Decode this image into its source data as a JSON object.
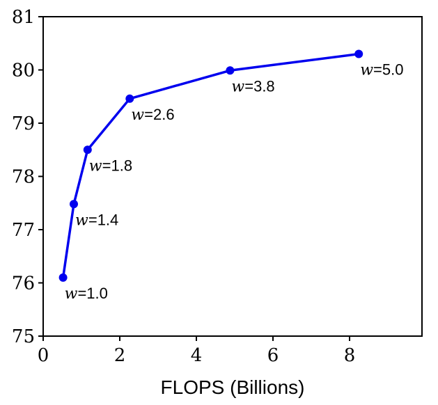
{
  "chart_data": {
    "type": "line",
    "title": "",
    "xlabel": "FLOPS (Billions)",
    "ylabel": "",
    "xlim": [
      0,
      10
    ],
    "ylim": [
      75,
      81
    ],
    "xticks": [
      0,
      2,
      4,
      6,
      8
    ],
    "yticks": [
      75,
      76,
      77,
      78,
      79,
      80,
      81
    ],
    "grid": false,
    "series": [
      {
        "color": "#0000ee",
        "points": [
          {
            "x": 0.52,
            "y": 76.1,
            "label_var": "w",
            "label_value": "=1.0"
          },
          {
            "x": 0.8,
            "y": 77.48,
            "label_var": "w",
            "label_value": "=1.4"
          },
          {
            "x": 1.16,
            "y": 78.5,
            "label_var": "w",
            "label_value": "=1.8"
          },
          {
            "x": 2.26,
            "y": 79.46,
            "label_var": "w",
            "label_value": "=2.6"
          },
          {
            "x": 4.88,
            "y": 79.99,
            "label_var": "w",
            "label_value": "=3.8"
          },
          {
            "x": 8.24,
            "y": 80.3,
            "label_var": "w",
            "label_value": "=5.0"
          }
        ]
      }
    ]
  }
}
